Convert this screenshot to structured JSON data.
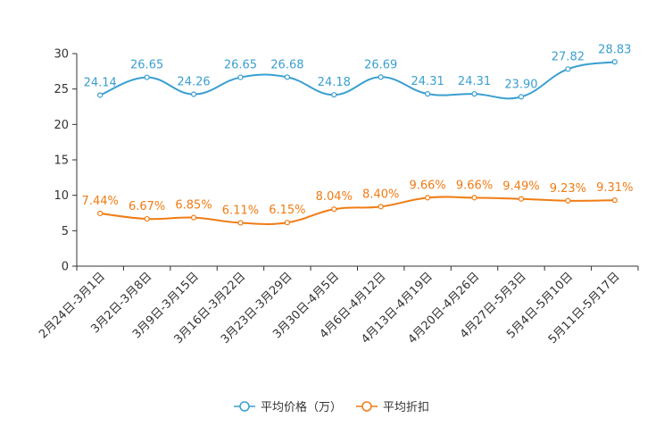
{
  "chart_data": {
    "type": "line",
    "title": "",
    "xlabel": "",
    "ylabel": "",
    "ylim": [
      0,
      30
    ],
    "yticks": [
      0,
      5,
      10,
      15,
      20,
      25,
      30
    ],
    "grid": false,
    "legend_position": "bottom-center",
    "categories": [
      "2月24日-3月1日",
      "3月2日-3月8日",
      "3月9日-3月15日",
      "3月16日-3月22日",
      "3月23日-3月29日",
      "3月30日-4月5日",
      "4月6日-4月12日",
      "4月13日-4月19日",
      "4月20日-4月26日",
      "4月27日-5月3日",
      "5月4日-5月10日",
      "5月11日-5月17日"
    ],
    "series": [
      {
        "name": "平均价格（万）",
        "color": "#3a9fd0",
        "values": [
          24.14,
          26.65,
          24.26,
          26.65,
          26.68,
          24.18,
          26.69,
          24.31,
          24.31,
          23.9,
          27.82,
          28.83
        ],
        "labels": [
          "24.14",
          "26.65",
          "24.26",
          "26.65",
          "26.68",
          "24.18",
          "26.69",
          "24.31",
          "24.31",
          "23.90",
          "27.82",
          "28.83"
        ]
      },
      {
        "name": "平均折扣",
        "color": "#f07c14",
        "values": [
          7.44,
          6.67,
          6.85,
          6.11,
          6.15,
          8.04,
          8.4,
          9.66,
          9.66,
          9.49,
          9.23,
          9.31
        ],
        "labels": [
          "7.44%",
          "6.67%",
          "6.85%",
          "6.11%",
          "6.15%",
          "8.04%",
          "8.40%",
          "9.66%",
          "9.66%",
          "9.49%",
          "9.23%",
          "9.31%"
        ]
      }
    ]
  }
}
